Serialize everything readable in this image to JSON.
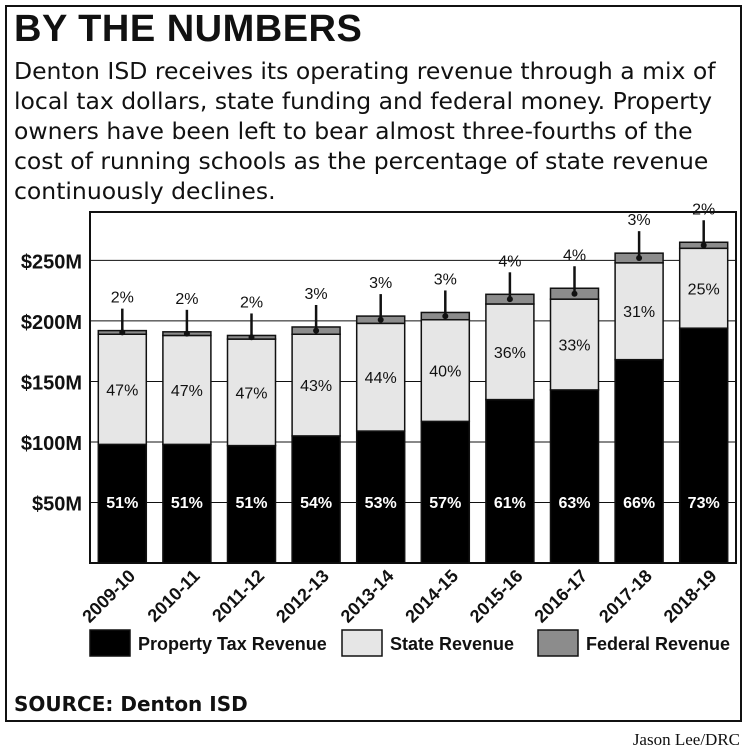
{
  "header": {
    "title": "BY THE NUMBERS",
    "subtitle": "Denton ISD receives its operating revenue through a mix of local tax dollars, state funding and federal money. Property owners have been left to bear almost three-fourths of the cost of running schools as the percentage of state revenue continuously declines."
  },
  "footer": {
    "source": "SOURCE: Denton ISD",
    "credit": "Jason Lee/DRC"
  },
  "colors": {
    "property": "#000000",
    "state": "#e6e6e6",
    "federal": "#8c8c8c"
  },
  "chart_data": {
    "type": "bar",
    "stacked": true,
    "categories": [
      "2009-10",
      "2010-11",
      "2011-12",
      "2012-13",
      "2013-14",
      "2014-15",
      "2015-16",
      "2016-17",
      "2017-18",
      "2018-19"
    ],
    "series": [
      {
        "name": "Property Tax Revenue",
        "color_key": "property",
        "values": [
          98,
          98,
          97,
          105,
          109,
          117,
          135,
          143,
          168,
          194
        ],
        "labels": [
          "51%",
          "51%",
          "51%",
          "54%",
          "53%",
          "57%",
          "61%",
          "63%",
          "66%",
          "73%"
        ]
      },
      {
        "name": "State Revenue",
        "color_key": "state",
        "values": [
          91,
          90,
          88,
          84,
          89,
          84,
          79,
          75,
          80,
          66
        ],
        "labels": [
          "47%",
          "47%",
          "47%",
          "43%",
          "44%",
          "40%",
          "36%",
          "33%",
          "31%",
          "25%"
        ]
      },
      {
        "name": "Federal Revenue",
        "color_key": "federal",
        "values": [
          3,
          3,
          3,
          6,
          6,
          6,
          8,
          9,
          8,
          5
        ],
        "labels": [
          "2%",
          "2%",
          "2%",
          "3%",
          "3%",
          "3%",
          "4%",
          "4%",
          "3%",
          "2%"
        ]
      }
    ],
    "y_ticks": [
      {
        "value": 50,
        "label": "$50M"
      },
      {
        "value": 100,
        "label": "$100M"
      },
      {
        "value": 150,
        "label": "$150M"
      },
      {
        "value": 200,
        "label": "$200M"
      },
      {
        "value": 250,
        "label": "$250M"
      }
    ],
    "ylim": [
      0,
      290
    ],
    "grid": true,
    "legend_position": "bottom"
  }
}
